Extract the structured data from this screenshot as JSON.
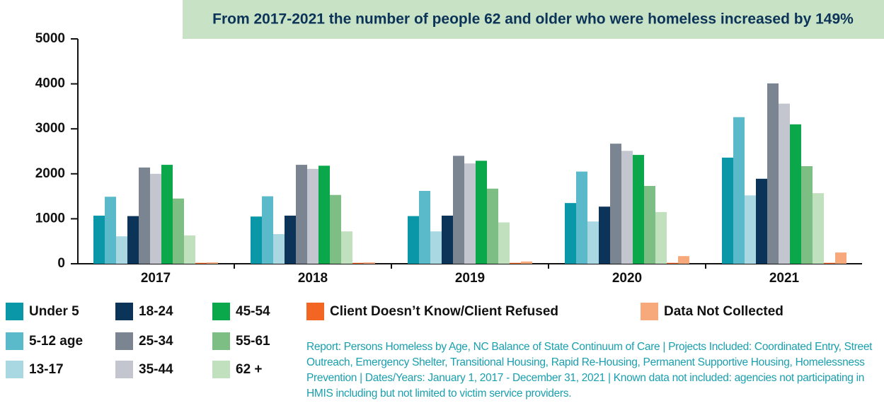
{
  "chart_data": {
    "type": "bar",
    "title": "From 2017-2021 the number of people 62 and older who were homeless increased by 149%",
    "categories": [
      "2017",
      "2018",
      "2019",
      "2020",
      "2021"
    ],
    "series": [
      {
        "name": "Under 5",
        "color": "#0a97a8",
        "values": [
          1070,
          1050,
          1060,
          1350,
          2360
        ]
      },
      {
        "name": "5-12 age",
        "color": "#5bbac9",
        "values": [
          1490,
          1500,
          1620,
          2050,
          3260
        ]
      },
      {
        "name": "13-17",
        "color": "#a9d8e3",
        "values": [
          610,
          660,
          720,
          940,
          1520
        ]
      },
      {
        "name": "18-24",
        "color": "#0c3358",
        "values": [
          1060,
          1070,
          1070,
          1270,
          1890
        ]
      },
      {
        "name": "25-34",
        "color": "#7a8591",
        "values": [
          2140,
          2200,
          2400,
          2670,
          4010
        ]
      },
      {
        "name": "35-44",
        "color": "#c3c6cf",
        "values": [
          2000,
          2110,
          2230,
          2510,
          3560
        ]
      },
      {
        "name": "45-54",
        "color": "#0aa84a",
        "values": [
          2200,
          2180,
          2290,
          2420,
          3100
        ]
      },
      {
        "name": "55-61",
        "color": "#7dbe85",
        "values": [
          1450,
          1530,
          1670,
          1730,
          2170
        ]
      },
      {
        "name": "62 +",
        "color": "#c1e0bd",
        "values": [
          630,
          720,
          920,
          1150,
          1570
        ]
      },
      {
        "name": "Client Doesn’t Know/Client Refused",
        "color": "#f26522",
        "values": [
          20,
          20,
          20,
          20,
          20
        ]
      },
      {
        "name": "Data Not Collected",
        "color": "#f7a97c",
        "values": [
          30,
          30,
          50,
          170,
          250
        ]
      }
    ],
    "ylim": [
      0,
      5000
    ],
    "yticks": [
      0,
      1000,
      2000,
      3000,
      4000,
      5000
    ],
    "grid": false,
    "note": "Report: Persons Homeless by Age, NC Balance of State Continuum of Care | Projects Included:  Coordinated Entry, Street Outreach, Emergency Shelter, Transitional Housing, Rapid Re-Housing, Permanent Supportive Housing, Homelessness Prevention | Dates/Years: January 1, 2017 - December 31, 2021 | Known data not included: agencies not participating in HMIS including but not limited to victim service providers."
  }
}
